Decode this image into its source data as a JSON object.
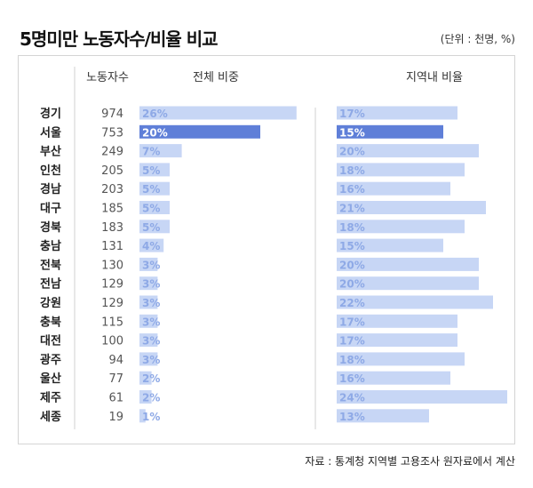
{
  "title": "5명미만 노동자수/비율 비교",
  "unit": "(단위 : 천명, %)",
  "source": "자료 : 통계청 지역별 고용조사 원자료에서 계산",
  "colors": {
    "bar_normal": "#c7d6f5",
    "bar_highlight": "#5f7fd8",
    "label_normal": "#8ea9e6",
    "label_highlight": "#ffffff",
    "divider": "#d0d0d0"
  },
  "chart_data": {
    "type": "bar",
    "column_headers": {
      "workers": "노동자수",
      "share": "전체 비중",
      "ratio": "지역내 비율"
    },
    "highlight": "서울",
    "rows": [
      {
        "region": "경기",
        "workers": "974",
        "share": 26,
        "ratio": 17
      },
      {
        "region": "서울",
        "workers": "753",
        "share": 20,
        "ratio": 15
      },
      {
        "region": "부산",
        "workers": "249",
        "share": 7,
        "ratio": 20
      },
      {
        "region": "인천",
        "workers": "205",
        "share": 5,
        "ratio": 18
      },
      {
        "region": "경남",
        "workers": "203",
        "share": 5,
        "ratio": 16
      },
      {
        "region": "대구",
        "workers": "185",
        "share": 5,
        "ratio": 21
      },
      {
        "region": "경북",
        "workers": "183",
        "share": 5,
        "ratio": 18
      },
      {
        "region": "충남",
        "workers": "131",
        "share": 4,
        "ratio": 15
      },
      {
        "region": "전북",
        "workers": "130",
        "share": 3,
        "ratio": 20
      },
      {
        "region": "전남",
        "workers": "129",
        "share": 3,
        "ratio": 20
      },
      {
        "region": "강원",
        "workers": "129",
        "share": 3,
        "ratio": 22
      },
      {
        "region": "충북",
        "workers": "115",
        "share": 3,
        "ratio": 17
      },
      {
        "region": "대전",
        "workers": "100",
        "share": 3,
        "ratio": 17
      },
      {
        "region": "광주",
        "workers": "94",
        "share": 3,
        "ratio": 18
      },
      {
        "region": "울산",
        "workers": "77",
        "share": 2,
        "ratio": 16
      },
      {
        "region": "제주",
        "workers": "61",
        "share": 2,
        "ratio": 24
      },
      {
        "region": "세종",
        "workers": "19",
        "share": 1,
        "ratio": 13
      }
    ]
  }
}
